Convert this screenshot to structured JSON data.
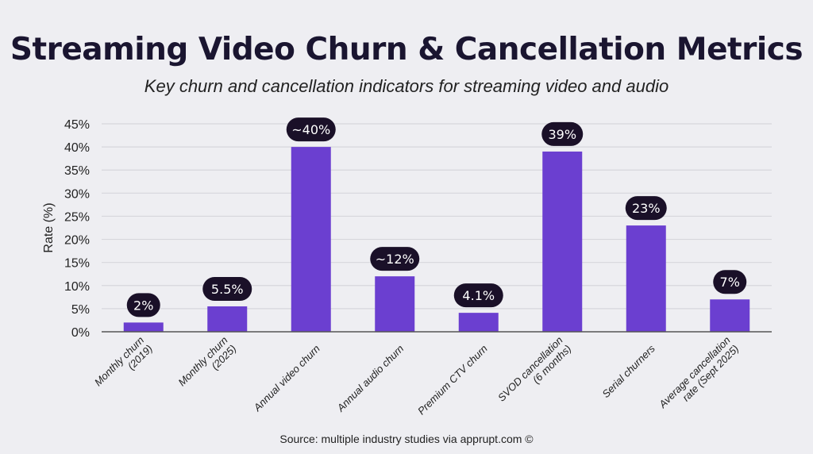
{
  "chart_data": {
    "type": "bar",
    "title": "Streaming Video Churn & Cancellation Metrics",
    "subtitle": "Key churn and cancellation indicators for streaming video and audio",
    "xlabel": "",
    "ylabel": "Rate (%)",
    "ylim": [
      0,
      45
    ],
    "yticks": [
      0,
      5,
      10,
      15,
      20,
      25,
      30,
      35,
      40,
      45
    ],
    "ytick_labels": [
      "0%",
      "5%",
      "10%",
      "15%",
      "20%",
      "25%",
      "30%",
      "35%",
      "40%",
      "45%"
    ],
    "grid": true,
    "categories": [
      [
        "Monthly churn",
        "(2019)"
      ],
      [
        "Monthly churn",
        "(2025)"
      ],
      [
        "Annual video churn"
      ],
      [
        "Annual audio churn"
      ],
      [
        "Premium CTV churn"
      ],
      [
        "SVOD cancellation",
        "(6 months)"
      ],
      [
        "Serial churners"
      ],
      [
        "Average cancellation",
        "rate (Sept 2025)"
      ]
    ],
    "values": [
      2,
      5.5,
      40,
      12,
      4.1,
      39,
      23,
      7
    ],
    "data_labels": [
      "2%",
      "5.5%",
      "~40%",
      "~12%",
      "4.1%",
      "39%",
      "23%",
      "7%"
    ],
    "source": "Source: multiple industry studies via apprupt.com ©",
    "colors": {
      "bar": "#6b3fd0",
      "label_bg": "#1a1028",
      "label_text": "#ffffff",
      "grid": "#d6d6dc",
      "axis": "#555555"
    }
  }
}
